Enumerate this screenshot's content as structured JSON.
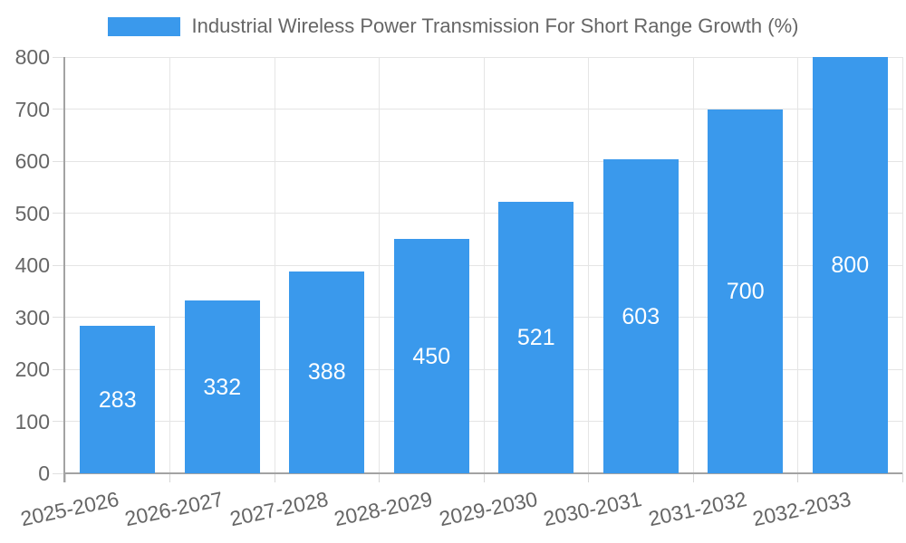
{
  "chart_data": {
    "type": "bar",
    "title": "Industrial Wireless Power Transmission For Short Range Growth (%)",
    "categories": [
      "2025-2026",
      "2026-2027",
      "2027-2028",
      "2028-2029",
      "2029-2030",
      "2030-2031",
      "2031-2032",
      "2032-2033"
    ],
    "values": [
      283,
      332,
      388,
      450,
      521,
      603,
      700,
      800
    ],
    "value_labels": [
      "283",
      "332",
      "388",
      "450",
      "521",
      "603",
      "700",
      "800"
    ],
    "ytick_labels": [
      "0",
      "100",
      "200",
      "300",
      "400",
      "500",
      "600",
      "700",
      "800"
    ],
    "ylim": [
      0,
      800
    ],
    "ytick_step": 100,
    "xlabel": "",
    "ylabel": "",
    "grid": true,
    "legend_position": "top",
    "colors": {
      "bar": "#3a99ec",
      "value_text": "#ffffff",
      "axis_text": "#666666",
      "grid_line": "#e5e5e5",
      "axis_line": "#a3a3a3",
      "background": "#ffffff"
    }
  }
}
